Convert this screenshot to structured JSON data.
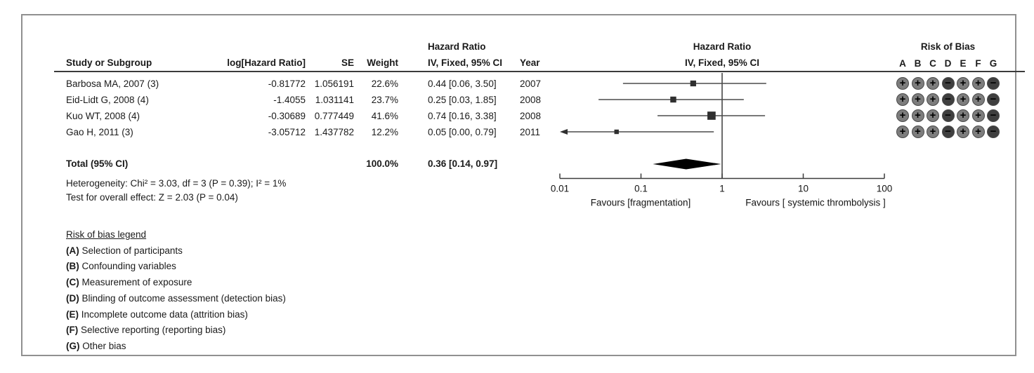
{
  "table": {
    "col_headers": {
      "study": "Study or Subgroup",
      "log_hr": "log[Hazard Ratio]",
      "se": "SE",
      "weight": "Weight",
      "hr_line1": "Hazard Ratio",
      "hr_line2": "IV, Fixed, 95% CI",
      "year": "Year"
    },
    "rows": [
      {
        "study": "Barbosa MA, 2007 (3)",
        "log_hr": "-0.81772",
        "se": "1.056191",
        "weight": "22.6%",
        "ci": "0.44 [0.06, 3.50]",
        "year": "2007"
      },
      {
        "study": "Eid-Lidt G, 2008 (4)",
        "log_hr": "-1.4055",
        "se": "1.031141",
        "weight": "23.7%",
        "ci": "0.25 [0.03, 1.85]",
        "year": "2008"
      },
      {
        "study": "Kuo WT, 2008 (4)",
        "log_hr": "-0.30689",
        "se": "0.777449",
        "weight": "41.6%",
        "ci": "0.74 [0.16, 3.38]",
        "year": "2008"
      },
      {
        "study": "Gao H, 2011 (3)",
        "log_hr": "-3.05712",
        "se": "1.437782",
        "weight": "12.2%",
        "ci": "0.05 [0.00, 0.79]",
        "year": "2011"
      }
    ],
    "total_label": "Total (95% CI)",
    "total_weight": "100.0%",
    "total_ci": "0.36 [0.14, 0.97]",
    "heterogeneity": "Heterogeneity: Chi² = 3.03, df = 3 (P = 0.39); I² = 1%",
    "overall_effect": "Test for overall effect: Z = 2.03 (P = 0.04)"
  },
  "plot": {
    "header_line1": "Hazard Ratio",
    "header_line2": "IV, Fixed, 95% CI",
    "favours_left": "Favours [fragmentation]",
    "favours_right": "Favours [ systemic thrombolysis ]"
  },
  "chart_data": {
    "type": "forest",
    "x_scale": "log",
    "x_range": [
      0.01,
      100
    ],
    "axis_ticks": [
      0.01,
      0.1,
      1,
      10,
      100
    ],
    "axis_tick_labels": [
      "0.01",
      "0.1",
      "1",
      "10",
      "100"
    ],
    "reference_line": 1,
    "effect_measure": "Hazard Ratio, IV, Fixed, 95% CI",
    "studies": [
      {
        "name": "Barbosa MA, 2007 (3)",
        "hr": 0.44,
        "ci_low": 0.06,
        "ci_high": 3.5,
        "weight_pct": 22.6,
        "year": 2007
      },
      {
        "name": "Eid-Lidt G, 2008 (4)",
        "hr": 0.25,
        "ci_low": 0.03,
        "ci_high": 1.85,
        "weight_pct": 23.7,
        "year": 2008
      },
      {
        "name": "Kuo WT, 2008 (4)",
        "hr": 0.74,
        "ci_low": 0.16,
        "ci_high": 3.38,
        "weight_pct": 41.6,
        "year": 2008
      },
      {
        "name": "Gao H, 2011 (3)",
        "hr": 0.05,
        "ci_low": 0.0,
        "ci_high": 0.79,
        "weight_pct": 12.2,
        "year": 2011
      }
    ],
    "total": {
      "label": "Total (95% CI)",
      "hr": 0.36,
      "ci_low": 0.14,
      "ci_high": 0.97,
      "weight_pct": 100.0
    }
  },
  "risk_of_bias": {
    "title": "Risk of Bias",
    "columns": [
      "A",
      "B",
      "C",
      "D",
      "E",
      "F",
      "G"
    ],
    "rows": [
      [
        "+",
        "+",
        "+",
        "-",
        "+",
        "+",
        "-"
      ],
      [
        "+",
        "+",
        "+",
        "-",
        "+",
        "+",
        "-"
      ],
      [
        "+",
        "+",
        "+",
        "-",
        "+",
        "+",
        "-"
      ],
      [
        "+",
        "+",
        "+",
        "-",
        "+",
        "+",
        "-"
      ]
    ],
    "plus_color": "#7d7d7d",
    "minus_color": "#3f3f3f"
  },
  "legend": {
    "title": "Risk of bias legend",
    "items": [
      {
        "key": "(A)",
        "text": "Selection of participants"
      },
      {
        "key": "(B)",
        "text": "Confounding variables"
      },
      {
        "key": "(C)",
        "text": "Measurement of exposure"
      },
      {
        "key": "(D)",
        "text": "Blinding of outcome assessment (detection bias)"
      },
      {
        "key": "(E)",
        "text": "Incomplete outcome data (attrition bias)"
      },
      {
        "key": "(F)",
        "text": "Selective reporting (reporting bias)"
      },
      {
        "key": "(G)",
        "text": "Other bias"
      }
    ]
  }
}
